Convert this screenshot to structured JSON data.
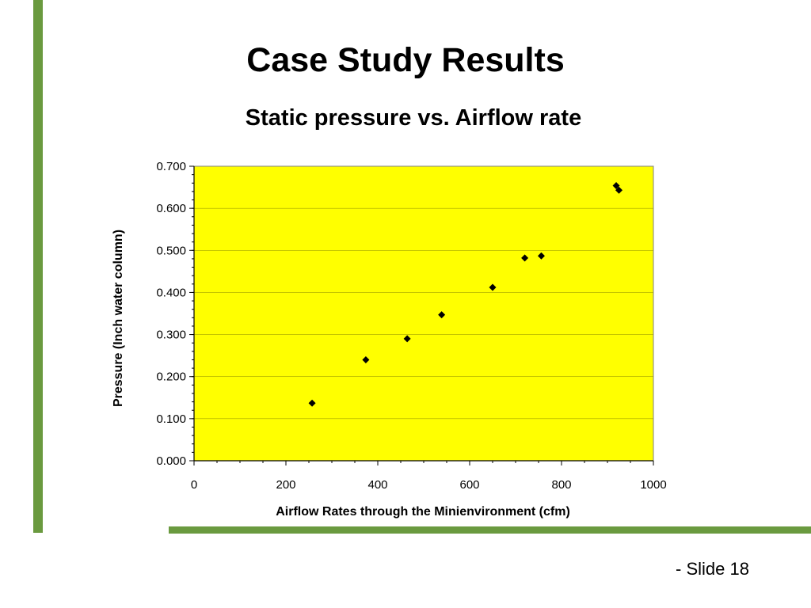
{
  "slide": {
    "title": "Case Study Results",
    "footer": "- Slide 18",
    "accent_color": "#6a9a3f"
  },
  "chart_data": {
    "type": "scatter",
    "title": "Static pressure vs. Airflow rate",
    "xlabel": "Airflow Rates through the Minienvironment (cfm)",
    "ylabel": "Pressure (Inch water column)",
    "xlim": [
      0,
      1000
    ],
    "ylim": [
      0,
      0.7
    ],
    "x_ticks": [
      "0",
      "200",
      "400",
      "600",
      "800",
      "1000"
    ],
    "y_ticks": [
      "0.000",
      "0.100",
      "0.200",
      "0.300",
      "0.400",
      "0.500",
      "0.600",
      "0.700"
    ],
    "grid": true,
    "plot_background": "#ffff00",
    "marker_color": "#000000",
    "points": [
      {
        "x": 257,
        "y": 0.137
      },
      {
        "x": 374,
        "y": 0.24
      },
      {
        "x": 464,
        "y": 0.29
      },
      {
        "x": 539,
        "y": 0.347
      },
      {
        "x": 650,
        "y": 0.412
      },
      {
        "x": 720,
        "y": 0.482
      },
      {
        "x": 756,
        "y": 0.487
      },
      {
        "x": 919,
        "y": 0.654
      },
      {
        "x": 925,
        "y": 0.643
      }
    ]
  }
}
